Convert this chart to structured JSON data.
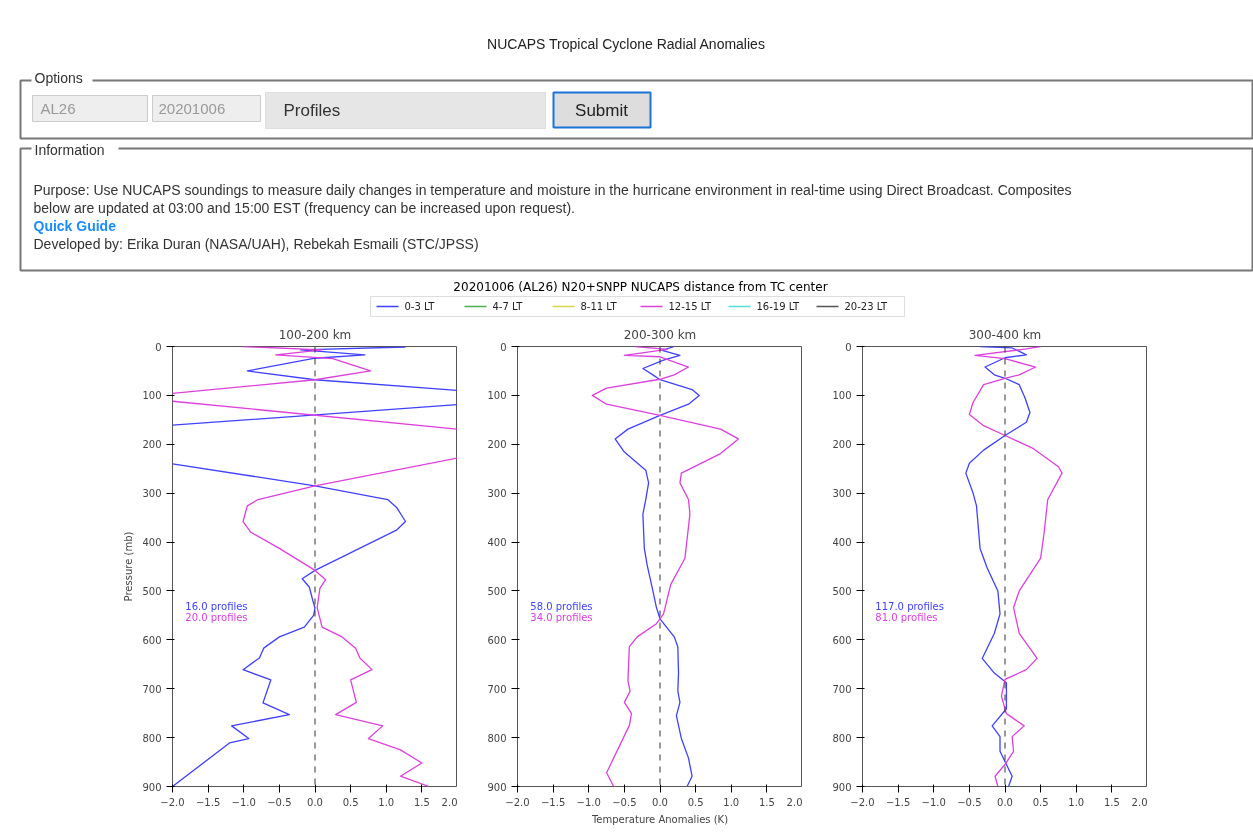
{
  "chart_data": [
    {
      "type": "other",
      "title": "NUCAPS Tropical Cyclone Radial Anomalies",
      "annotations": [
        "Options",
        "AL26",
        "20201006",
        "Profiles",
        "Submit",
        "Information",
        "Purpose: Use NUCAPS soundings to measure daily changes in temperature and moisture in the hurricane environment in real-time using Direct Broadcast. Composites",
        "below are updated at 03:00 and 15:00 EST (frequency can be increased upon request).",
        "Quick Guide",
        "Developed by: Erika Duran (NASA/UAH), Rebekah Esmaili (STC/JPSS)"
      ]
    },
    {
      "type": "line",
      "title": "100-200 km",
      "ylabel": "Pressure (mb)",
      "line_style": "solid",
      "xlim": [
        -2,
        2
      ],
      "xticks": [
        {
          "value": -2,
          "label": "−2.0"
        },
        {
          "value": -1.5,
          "label": "−1.5"
        },
        {
          "value": -1,
          "label": "−1.0"
        },
        {
          "value": -0.5,
          "label": "−0.5"
        },
        {
          "value": 0,
          "label": "0.0"
        },
        {
          "value": 0.5,
          "label": "0.5"
        },
        {
          "value": 1,
          "label": "1.0"
        },
        {
          "value": 1.5,
          "label": "1.5"
        },
        {
          "value": 2,
          "label": "2.0"
        }
      ],
      "ylim": [
        900,
        0
      ],
      "yticks": [
        0,
        100,
        200,
        300,
        400,
        500,
        600,
        700,
        800,
        900
      ],
      "ref_lines": [
        {
          "axis": "x",
          "value": 0,
          "label": null,
          "color": "#333333",
          "line_style": "dashed"
        }
      ],
      "annotations": [
        "16.0 profiles",
        "20.0 profiles"
      ],
      "series": [
        {
          "color": "#4040ff",
          "x": [
            1.27,
            -0.2,
            0.7,
            0.0,
            -0.95,
            0.0,
            2.0,
            null,
            2.0,
            -2.0,
            null,
            -2.0,
            0.0,
            1.02,
            1.15,
            1.27,
            1.15,
            0.0,
            -0.18,
            -0.08,
            -0.03,
            0.0,
            -0.02,
            -0.15,
            -0.5,
            -0.72,
            -0.78,
            -1.01,
            -0.62,
            -0.73,
            -0.36,
            -1.17,
            -0.93,
            -1.2,
            -2.0
          ],
          "values": [
            1,
            7,
            17,
            24,
            50,
            68,
            90,
            null,
            119,
            161,
            null,
            240,
            285,
            313,
            330,
            358,
            375,
            458,
            475,
            492,
            520,
            535,
            550,
            574,
            594,
            617,
            637,
            661,
            682,
            729,
            753,
            776,
            802,
            811,
            900
          ]
        },
        {
          "color": "#dd40dd",
          "x": [
            -1.02,
            0.1,
            -0.55,
            0.25,
            0.78,
            0.0,
            -2.0,
            null,
            -2.0,
            2.0,
            null,
            2.0,
            0.0,
            -0.8,
            -0.95,
            -1.01,
            -0.9,
            -0.5,
            0.0,
            0.15,
            0.07,
            0.03,
            0.1,
            0.38,
            0.57,
            0.63,
            0.8,
            0.5,
            0.58,
            0.29,
            0.95,
            0.75,
            1.2,
            1.5,
            1.2,
            1.6
          ],
          "values": [
            0,
            7,
            17,
            25,
            50,
            68,
            96,
            null,
            112,
            169,
            null,
            228,
            285,
            313,
            326,
            358,
            380,
            413,
            458,
            477,
            494,
            534,
            574,
            594,
            617,
            637,
            661,
            682,
            728,
            753,
            776,
            802,
            825,
            852,
            879,
            900
          ]
        }
      ]
    },
    {
      "type": "line",
      "title": "200-300 km",
      "subtitle": "20201006 (AL26) N20+SNPP NUCAPS distance from TC center",
      "legend": "top",
      "xlabel": "Temperature Anomalies (K)",
      "line_style": "solid",
      "xlim": [
        -2,
        2
      ],
      "xticks": [
        {
          "value": -2,
          "label": "−2.0"
        },
        {
          "value": -1.5,
          "label": "−1.5"
        },
        {
          "value": -1,
          "label": "−1.0"
        },
        {
          "value": -0.5,
          "label": "−0.5"
        },
        {
          "value": 0,
          "label": "0.0"
        },
        {
          "value": 0.5,
          "label": "0.5"
        },
        {
          "value": 1,
          "label": "1.0"
        },
        {
          "value": 1.5,
          "label": "1.5"
        },
        {
          "value": 2,
          "label": "2.0"
        }
      ],
      "ylim": [
        900,
        0
      ],
      "yticks": [
        0,
        100,
        200,
        300,
        400,
        500,
        600,
        700,
        800,
        900
      ],
      "ref_lines": [
        {
          "axis": "x",
          "value": 0,
          "label": null,
          "color": "#333333",
          "line_style": "dashed"
        }
      ],
      "annotations": [
        "58.0 profiles",
        "34.0 profiles"
      ],
      "series": [
        {
          "name": "0-3 LT",
          "color": "#4040ff",
          "x": [
            0.2,
            0.03,
            0.28,
            0.05,
            -0.24,
            -0.1,
            0.0,
            0.45,
            0.55,
            0.4,
            0.0,
            -0.45,
            -0.63,
            -0.5,
            -0.2,
            -0.16,
            -0.2,
            -0.24,
            -0.22,
            -0.18,
            -0.1,
            -0.05,
            0.0,
            0.2,
            0.25,
            0.26,
            0.25,
            0.28,
            0.23,
            0.3,
            0.4,
            0.45,
            0.38
          ],
          "values": [
            0,
            8,
            18,
            28,
            45,
            58,
            68,
            88,
            100,
            118,
            141,
            169,
            189,
            216,
            253,
            279,
            313,
            343,
            413,
            447,
            500,
            534,
            557,
            594,
            614,
            668,
            705,
            728,
            755,
            802,
            842,
            879,
            900
          ]
        },
        {
          "name": "4-7 LT",
          "color": "#4caf50"
        },
        {
          "name": "8-11 LT",
          "color": "#d6d64a"
        },
        {
          "name": "12-15 LT",
          "color": "#dd40dd",
          "x": [
            -0.35,
            0.1,
            -0.5,
            0.0,
            0.4,
            0.2,
            0.0,
            -0.75,
            -0.95,
            -0.75,
            0.0,
            0.85,
            1.1,
            0.85,
            0.3,
            0.28,
            0.4,
            0.42,
            0.35,
            0.15,
            0.05,
            -0.05,
            -0.32,
            -0.43,
            -0.45,
            -0.42,
            -0.5,
            -0.4,
            -0.43,
            -0.75,
            -0.65
          ],
          "values": [
            0,
            6,
            18,
            21,
            42,
            58,
            67,
            85,
            100,
            118,
            141,
            169,
            189,
            219,
            259,
            279,
            313,
            343,
            433,
            487,
            547,
            567,
            594,
            614,
            684,
            705,
            728,
            751,
            775,
            872,
            900
          ]
        },
        {
          "name": "16-19 LT",
          "color": "#55dddd"
        },
        {
          "name": "20-23 LT",
          "color": "#555555"
        }
      ]
    },
    {
      "type": "line",
      "title": "300-400 km",
      "line_style": "solid",
      "xlim": [
        -2,
        2
      ],
      "xticks": [
        {
          "value": -2,
          "label": "−2.0"
        },
        {
          "value": -1.5,
          "label": "−1.5"
        },
        {
          "value": -1,
          "label": "−1.0"
        },
        {
          "value": -0.5,
          "label": "−0.5"
        },
        {
          "value": 0,
          "label": "0.0"
        },
        {
          "value": 0.5,
          "label": "0.5"
        },
        {
          "value": 1,
          "label": "1.0"
        },
        {
          "value": 1.5,
          "label": "1.5"
        },
        {
          "value": 2,
          "label": "2.0"
        }
      ],
      "ylim": [
        900,
        0
      ],
      "yticks": [
        0,
        100,
        200,
        300,
        400,
        500,
        600,
        700,
        800,
        900
      ],
      "ref_lines": [
        {
          "axis": "x",
          "value": 0,
          "label": null,
          "color": "#333333",
          "line_style": "dashed"
        }
      ],
      "annotations": [
        "117.0 profiles",
        "81.0 profiles"
      ],
      "series": [
        {
          "color": "#4040ff",
          "x": [
            -0.35,
            0.1,
            0.3,
            0.0,
            -0.28,
            -0.15,
            0.0,
            0.2,
            0.28,
            0.35,
            0.3,
            0.0,
            -0.3,
            -0.5,
            -0.55,
            -0.45,
            -0.4,
            -0.35,
            -0.25,
            -0.1,
            -0.07,
            -0.15,
            -0.32,
            -0.15,
            0.02,
            0.02,
            -0.18,
            -0.07,
            -0.07,
            0.1,
            0.05
          ],
          "values": [
            0,
            3,
            17,
            23,
            42,
            58,
            65,
            78,
            105,
            135,
            155,
            182,
            212,
            239,
            259,
            299,
            326,
            413,
            453,
            500,
            547,
            587,
            638,
            668,
            688,
            741,
            776,
            798,
            828,
            879,
            900
          ]
        },
        {
          "color": "#dd40dd",
          "x": [
            0.5,
            0.3,
            -0.42,
            0.0,
            0.43,
            0.2,
            0.0,
            -0.3,
            -0.45,
            -0.5,
            -0.3,
            0.0,
            0.4,
            0.75,
            0.8,
            0.6,
            0.55,
            0.5,
            0.2,
            0.12,
            0.2,
            0.45,
            0.3,
            0.0,
            -0.05,
            0.02,
            0.27,
            0.1,
            0.12,
            0.0,
            -0.14,
            -0.1
          ],
          "values": [
            0,
            5,
            18,
            25,
            42,
            58,
            65,
            78,
            115,
            139,
            162,
            182,
            209,
            246,
            259,
            313,
            380,
            433,
            500,
            534,
            587,
            638,
            661,
            681,
            715,
            751,
            776,
            798,
            828,
            855,
            879,
            900
          ]
        }
      ]
    }
  ]
}
